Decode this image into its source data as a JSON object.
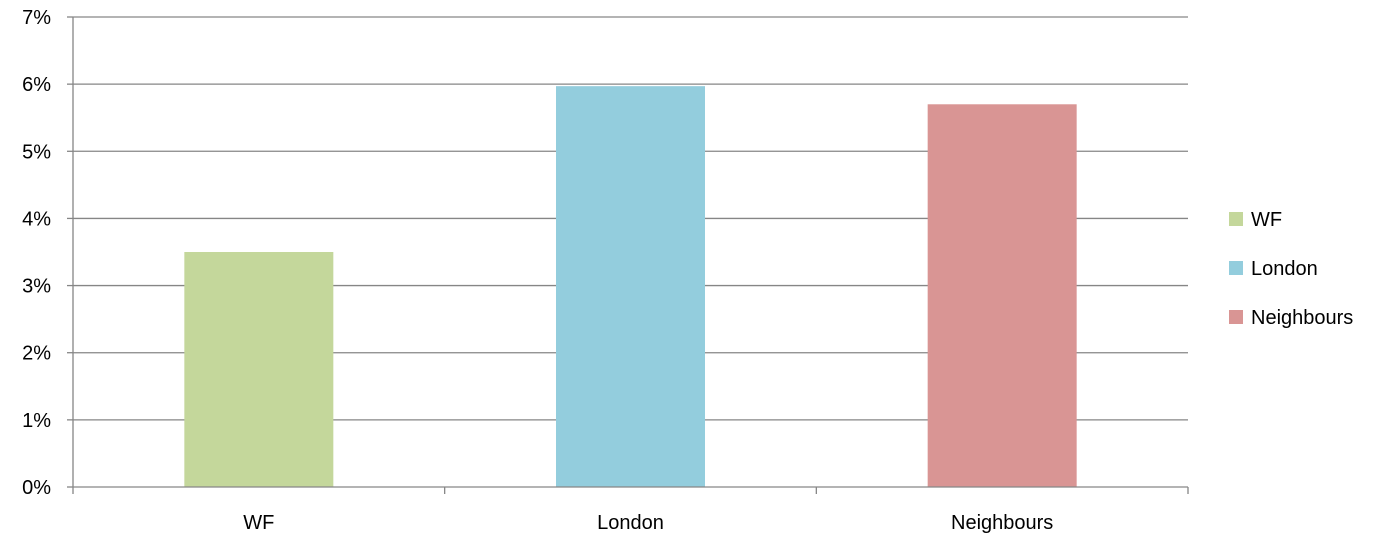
{
  "chart_data": {
    "type": "bar",
    "categories": [
      "WF",
      "London",
      "Neighbours"
    ],
    "values": [
      3.5,
      5.97,
      5.7
    ],
    "colors": [
      "#c4d79b",
      "#93cddd",
      "#d99594"
    ],
    "title": "",
    "xlabel": "",
    "ylabel": "",
    "ylim": [
      0,
      7
    ],
    "y_ticks": [
      0,
      1,
      2,
      3,
      4,
      5,
      6,
      7
    ],
    "y_tick_labels": [
      "0%",
      "1%",
      "2%",
      "3%",
      "4%",
      "5%",
      "6%",
      "7%"
    ],
    "grid": true,
    "legend": {
      "placement": "right",
      "entries": [
        {
          "label": "WF",
          "color": "#c4d79b"
        },
        {
          "label": "London",
          "color": "#93cddd"
        },
        {
          "label": "Neighbours",
          "color": "#d99594"
        }
      ]
    }
  }
}
